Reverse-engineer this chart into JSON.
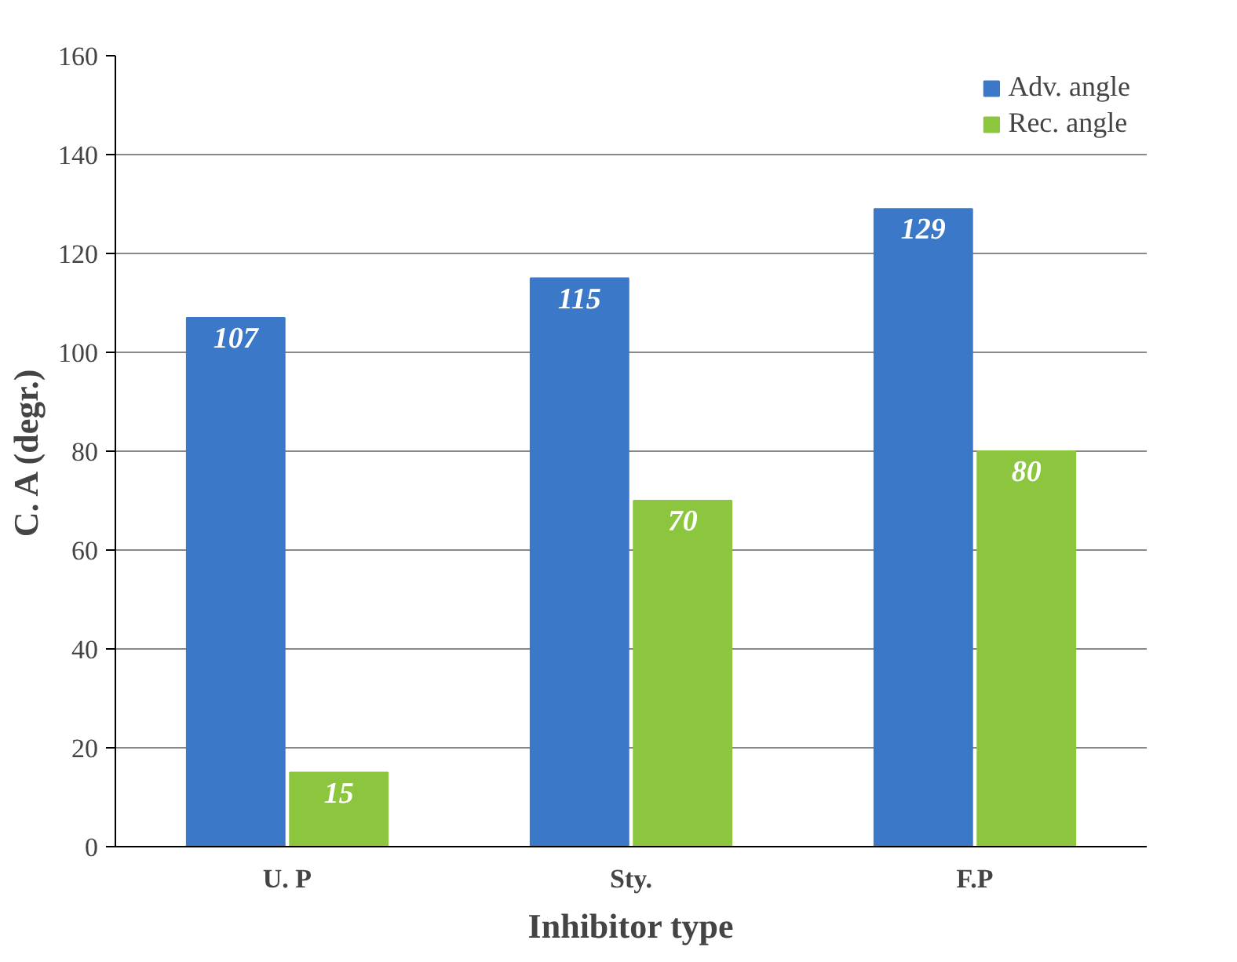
{
  "chart_data": {
    "type": "bar",
    "xlabel": "Inhibitor type",
    "ylabel": "C. A (degr.)",
    "categories": [
      "U. P",
      "Sty.",
      "F.P"
    ],
    "series": [
      {
        "name": "Adv. angle",
        "color": "#3b78c8",
        "values": [
          107,
          115,
          129
        ]
      },
      {
        "name": "Rec. angle",
        "color": "#8cc63f",
        "values": [
          15,
          70,
          80
        ]
      }
    ],
    "ylim": [
      0,
      160
    ],
    "yticks": [
      0,
      20,
      40,
      60,
      80,
      100,
      120,
      140,
      160
    ],
    "grid": "y",
    "legend": "top right",
    "data_labels": true
  }
}
